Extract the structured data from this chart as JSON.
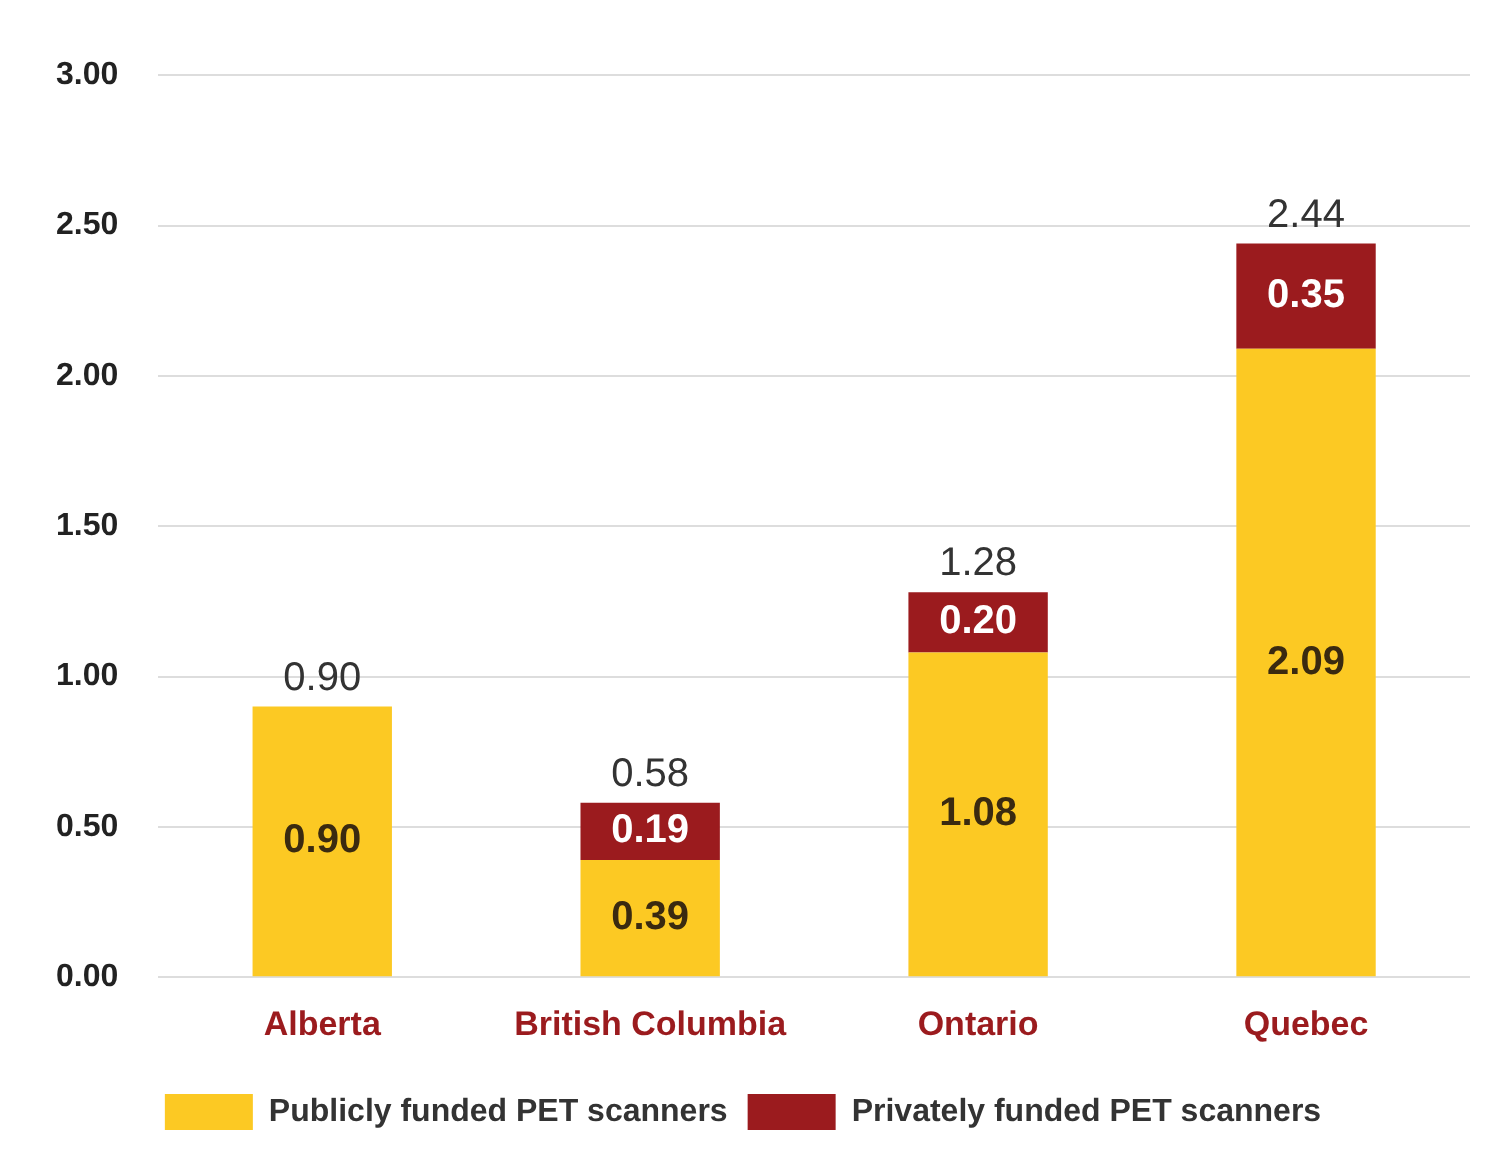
{
  "chart_data": {
    "type": "bar",
    "stacked": true,
    "categories": [
      "Alberta",
      "British Columbia",
      "Ontario",
      "Quebec"
    ],
    "series": [
      {
        "name": "Publicly funded PET scanners",
        "color": "#fcc923",
        "values": [
          0.9,
          0.39,
          1.08,
          2.09
        ],
        "value_labels": [
          "0.90",
          "0.39",
          "1.08",
          "2.09"
        ]
      },
      {
        "name": "Privately funded PET scanners",
        "color": "#9b1b1e",
        "values": [
          null,
          0.19,
          0.2,
          0.35
        ],
        "value_labels": [
          null,
          "0.19",
          "0.20",
          "0.35"
        ]
      }
    ],
    "totals": [
      "0.90",
      "0.58",
      "1.28",
      "2.44"
    ],
    "ylim": [
      0,
      3
    ],
    "yticks": [
      {
        "value": 0,
        "label": "0.00"
      },
      {
        "value": 0.5,
        "label": "0.50"
      },
      {
        "value": 1,
        "label": "1.00"
      },
      {
        "value": 1.5,
        "label": "1.50"
      },
      {
        "value": 2,
        "label": "2.00"
      },
      {
        "value": 2.5,
        "label": "2.50"
      },
      {
        "value": 3,
        "label": "3.00"
      }
    ],
    "grid": "y",
    "legend": "bottom"
  }
}
